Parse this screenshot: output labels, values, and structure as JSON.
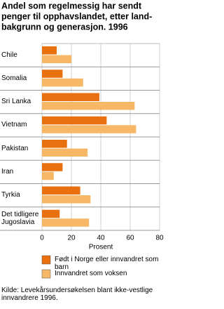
{
  "chart_data": {
    "type": "hbar",
    "title_lines": [
      "Andel som regelmessig har sendt",
      "penger til opphavslandet, etter land-",
      "bakgrunn og generasjon. 1996"
    ],
    "categories": [
      "Chile",
      "Somalia",
      "Sri Lanka",
      "Vietnam",
      "Pakistan",
      "Iran",
      "Tyrkia",
      "Det tidligere Jugoslavia"
    ],
    "series": [
      {
        "name": "Født i Norge eller innvandret som barn",
        "color": "#e8700e",
        "values": [
          10,
          14,
          39,
          44,
          17,
          14,
          26,
          12
        ]
      },
      {
        "name": "Innvandret som voksen",
        "color": "#f6b866",
        "values": [
          20,
          28,
          63,
          64,
          31,
          8,
          33,
          32
        ]
      }
    ],
    "xlim": [
      0,
      80
    ],
    "xticks": [
      0,
      20,
      40,
      60,
      80
    ],
    "xlabel": "Prosent",
    "grid": true,
    "source": "Kilde: Levekårsundersøkelsen blant ikke-vestlige innvandrere 1996."
  }
}
